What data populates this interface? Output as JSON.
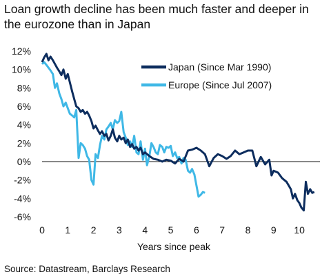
{
  "chart_data": {
    "type": "line",
    "title": "Loan growth decline has been much faster and deeper in the eurozone than in Japan",
    "xlabel": "Years since peak",
    "ylabel": "",
    "source": "Source: Datastream, Barclays Research",
    "xlim": [
      0,
      10.8
    ],
    "ylim": [
      -6,
      12
    ],
    "xticks": [
      0,
      1,
      2,
      3,
      4,
      5,
      6,
      7,
      8,
      9,
      10
    ],
    "yticks": [
      -6,
      -4,
      -2,
      0,
      2,
      4,
      6,
      8,
      10,
      12
    ],
    "ytick_labels": [
      "-6%",
      "-4%",
      "-2%",
      "0%",
      "2%",
      "4%",
      "6%",
      "8%",
      "10%",
      "12%"
    ],
    "grid": false,
    "legend_position": "top-right",
    "colors": {
      "japan": "#0d2d5e",
      "europe": "#3fb8e6"
    },
    "series": [
      {
        "name": "Japan (Since Mar 1990)",
        "x": [
          0,
          0.08,
          0.17,
          0.25,
          0.33,
          0.42,
          0.5,
          0.58,
          0.67,
          0.75,
          0.83,
          0.92,
          1.0,
          1.08,
          1.17,
          1.25,
          1.33,
          1.42,
          1.5,
          1.58,
          1.67,
          1.75,
          1.83,
          1.92,
          2.0,
          2.08,
          2.17,
          2.25,
          2.33,
          2.42,
          2.5,
          2.58,
          2.67,
          2.75,
          2.83,
          2.92,
          3.0,
          3.08,
          3.17,
          3.25,
          3.33,
          3.42,
          3.5,
          3.58,
          3.67,
          3.75,
          3.83,
          3.92,
          4.0,
          4.17,
          4.33,
          4.5,
          4.67,
          4.83,
          5.0,
          5.17,
          5.33,
          5.5,
          5.67,
          5.83,
          6.0,
          6.17,
          6.33,
          6.5,
          6.67,
          6.83,
          7.0,
          7.17,
          7.33,
          7.5,
          7.67,
          7.83,
          8.0,
          8.17,
          8.33,
          8.5,
          8.67,
          8.83,
          8.92,
          9.0,
          9.17,
          9.33,
          9.5,
          9.67,
          9.75,
          9.83,
          9.92,
          10.0,
          10.08,
          10.17,
          10.25,
          10.33,
          10.42,
          10.5,
          10.58
        ],
        "values": [
          10.8,
          11.3,
          11.7,
          11.0,
          11.4,
          11.0,
          10.6,
          10.2,
          9.8,
          9.4,
          10.0,
          9.0,
          9.5,
          8.6,
          7.6,
          6.8,
          6.0,
          5.8,
          5.4,
          5.6,
          5.2,
          5.4,
          5.0,
          4.4,
          3.6,
          3.9,
          3.4,
          3.0,
          3.3,
          2.8,
          3.0,
          2.3,
          2.8,
          3.5,
          2.6,
          2.2,
          2.8,
          2.4,
          2.6,
          2.0,
          2.4,
          1.6,
          1.9,
          1.4,
          1.6,
          1.2,
          1.5,
          0.8,
          1.0,
          0.6,
          0.3,
          0.2,
          0.0,
          0.2,
          0.1,
          -0.2,
          0.3,
          0.0,
          1.2,
          1.3,
          1.5,
          1.2,
          0.8,
          -0.5,
          0.4,
          0.8,
          0.6,
          0.3,
          0.6,
          1.2,
          0.8,
          1.0,
          1.2,
          1.2,
          -0.5,
          0.5,
          -0.3,
          0.2,
          -1.5,
          -1.0,
          -1.2,
          -1.8,
          -2.2,
          -3.0,
          -4.0,
          -3.5,
          -4.2,
          -4.5,
          -5.0,
          -5.3,
          -2.2,
          -3.5,
          -3.0,
          -3.4,
          -3.3
        ]
      },
      {
        "name": "Europe (Since Jul 2007)",
        "x": [
          0,
          0.08,
          0.17,
          0.25,
          0.33,
          0.42,
          0.5,
          0.58,
          0.67,
          0.75,
          0.83,
          0.92,
          1.0,
          1.08,
          1.17,
          1.25,
          1.33,
          1.42,
          1.5,
          1.58,
          1.67,
          1.75,
          1.83,
          1.92,
          2.0,
          2.08,
          2.17,
          2.25,
          2.33,
          2.42,
          2.5,
          2.58,
          2.67,
          2.75,
          2.83,
          2.92,
          3.0,
          3.08,
          3.17,
          3.25,
          3.33,
          3.42,
          3.5,
          3.58,
          3.67,
          3.75,
          3.83,
          3.92,
          4.0,
          4.08,
          4.17,
          4.25,
          4.33,
          4.42,
          4.5,
          4.58,
          4.67,
          4.75,
          4.83,
          4.92,
          5.0,
          5.08,
          5.17,
          5.25,
          5.33,
          5.42,
          5.5,
          5.58,
          5.67,
          5.75,
          5.83,
          5.92,
          6.0,
          6.08,
          6.17,
          6.25,
          6.33
        ],
        "values": [
          10.6,
          10.8,
          10.5,
          10.2,
          9.9,
          9.5,
          8.0,
          8.5,
          7.4,
          6.8,
          6.0,
          6.4,
          5.8,
          5.2,
          5.0,
          4.8,
          5.6,
          0.4,
          2.0,
          1.8,
          1.4,
          0.6,
          0.2,
          -2.0,
          -2.5,
          0.8,
          0.4,
          1.8,
          2.8,
          2.4,
          3.5,
          3.8,
          4.2,
          3.5,
          4.5,
          4.2,
          4.4,
          5.4,
          3.2,
          2.6,
          1.8,
          2.2,
          1.6,
          2.8,
          1.0,
          0.8,
          2.2,
          0.2,
          1.4,
          -0.4,
          0.6,
          2.0,
          1.6,
          1.0,
          0.8,
          1.8,
          1.6,
          1.0,
          1.6,
          1.5,
          1.7,
          0.6,
          1.0,
          0.4,
          0.5,
          -0.2,
          0.4,
          0.2,
          -1.0,
          -1.2,
          -0.8,
          -1.4,
          -2.6,
          -3.8,
          -3.6,
          -3.3,
          -3.4
        ]
      }
    ]
  }
}
